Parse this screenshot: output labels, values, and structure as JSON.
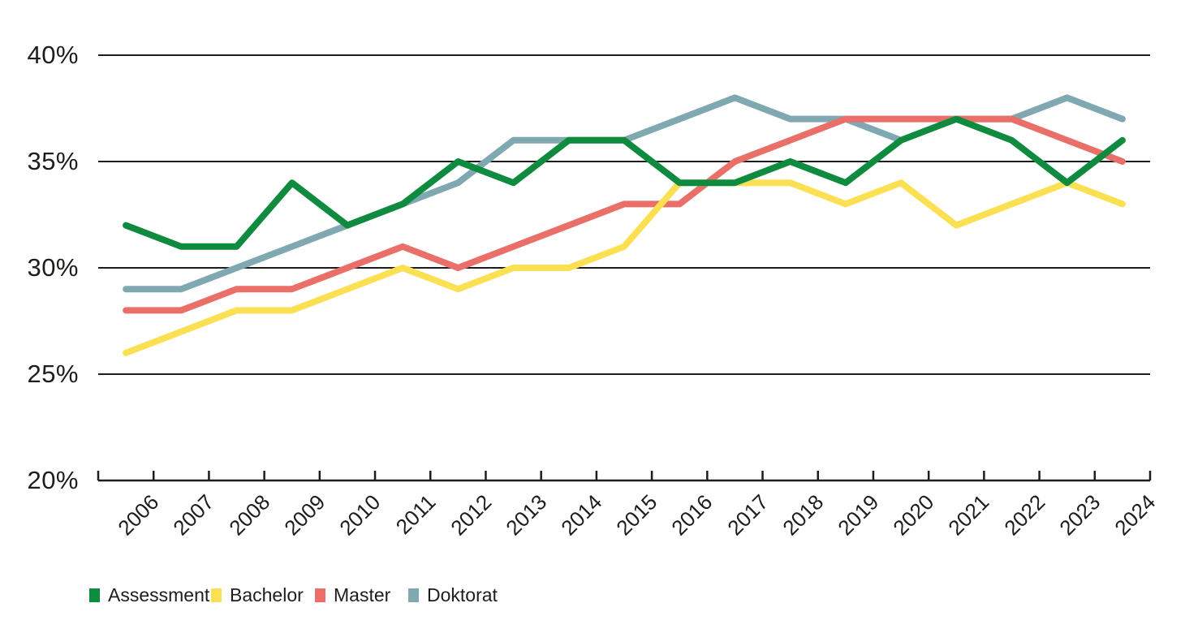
{
  "chart_data": {
    "type": "line",
    "x": [
      "2006",
      "2007",
      "2008",
      "2009",
      "2010",
      "2011",
      "2012",
      "2013",
      "2014",
      "2015",
      "2016",
      "2017",
      "2018",
      "2019",
      "2020",
      "2021",
      "2022",
      "2023",
      "2024"
    ],
    "series": [
      {
        "name": "Assessment",
        "color": "#0f8b3f",
        "values": [
          32,
          31,
          31,
          34,
          32,
          33,
          35,
          34,
          36,
          36,
          34,
          34,
          35,
          34,
          36,
          37,
          36,
          34,
          36
        ]
      },
      {
        "name": "Bachelor",
        "color": "#fce054",
        "values": [
          26,
          27,
          28,
          28,
          29,
          30,
          29,
          30,
          30,
          31,
          34,
          34,
          34,
          33,
          34,
          32,
          33,
          34,
          33
        ]
      },
      {
        "name": "Master",
        "color": "#e96f68",
        "values": [
          28,
          28,
          29,
          29,
          30,
          31,
          30,
          31,
          32,
          33,
          33,
          35,
          36,
          37,
          37,
          37,
          37,
          36,
          35
        ]
      },
      {
        "name": "Doktorat",
        "color": "#7fa8b1",
        "values": [
          29,
          29,
          30,
          31,
          32,
          33,
          34,
          36,
          36,
          36,
          37,
          38,
          37,
          37,
          36,
          37,
          37,
          38,
          37
        ]
      }
    ],
    "title": "",
    "xlabel": "",
    "ylabel": "",
    "ylim": [
      20,
      40
    ],
    "yticks": [
      {
        "value": 20,
        "label": "20%"
      },
      {
        "value": 25,
        "label": "25%"
      },
      {
        "value": 30,
        "label": "30%"
      },
      {
        "value": 35,
        "label": "35%"
      },
      {
        "value": 40,
        "label": "40%"
      }
    ],
    "grid": "horizontal",
    "legend_position": "bottom-left",
    "axis_color": "#1d1d1b",
    "background_color": "#ffffff"
  }
}
